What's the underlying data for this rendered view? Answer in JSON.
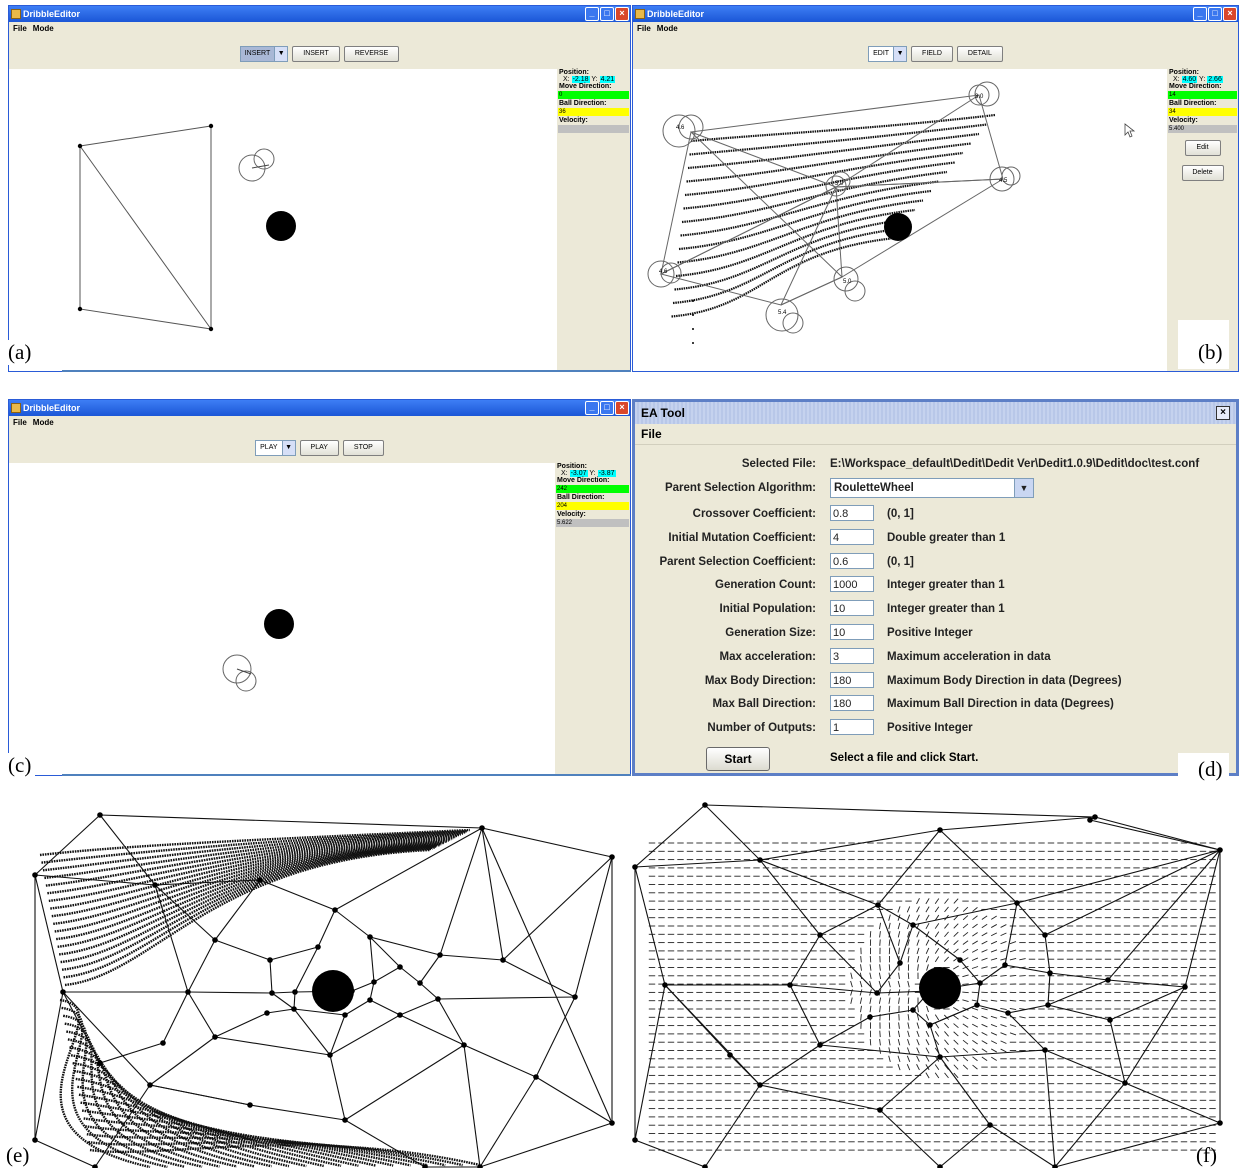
{
  "window_title": "DribbleEditor",
  "menus": [
    "File",
    "Mode"
  ],
  "panels": [
    {
      "id": "a",
      "caption": "(a)",
      "mode_value": "INSERT",
      "buttons": [
        "INSERT",
        "REVERSE"
      ],
      "position_label": "Position:",
      "x_label": "X:",
      "x_value": "-2.18",
      "y_label": "Y:",
      "y_value": "4.21",
      "move_label": "Move Direction:",
      "move_value": "0",
      "ball_label": "Ball Direction:",
      "ball_value": "36",
      "velocity_label": "Velocity:",
      "velocity_value": ""
    },
    {
      "id": "b",
      "caption": "(b)",
      "mode_value": "EDIT",
      "buttons": [
        "FIELD",
        "DETAIL"
      ],
      "position_label": "Position:",
      "x_label": "X:",
      "x_value": "4.60",
      "y_label": "Y:",
      "y_value": "2.66",
      "move_label": "Move Direction:",
      "move_value": "14",
      "ball_label": "Ball Direction:",
      "ball_value": "34",
      "velocity_label": "Velocity:",
      "velocity_value": "5.400",
      "side_buttons": [
        "Edit",
        "Delete"
      ],
      "node_labels": [
        "3.0",
        "4.6",
        "3.0",
        "4.5",
        "4.6",
        "5.0",
        "5.4"
      ]
    },
    {
      "id": "c",
      "caption": "(c)",
      "mode_value": "PLAY",
      "buttons": [
        "PLAY",
        "STOP"
      ],
      "position_label": "Position:",
      "x_label": "X:",
      "x_value": "-3.07",
      "y_label": "Y:",
      "y_value": "-3.87",
      "move_label": "Move Direction:",
      "move_value": "242",
      "ball_label": "Ball Direction:",
      "ball_value": "204",
      "velocity_label": "Velocity:",
      "velocity_value": "5.622"
    }
  ],
  "ea_tool": {
    "title": "EA Tool",
    "menu": "File",
    "caption": "(d)",
    "selected_file_label": "Selected File:",
    "selected_file": "E:\\Workspace_default\\Dedit\\Dedit Ver\\Dedit1.0.9\\Dedit\\doc\\test.conf",
    "algorithm_label": "Parent Selection Algorithm:",
    "algorithm_value": "RouletteWheel",
    "params": [
      {
        "label": "Crossover Coefficient:",
        "value": "0.8",
        "hint": "(0, 1]"
      },
      {
        "label": "Initial Mutation Coefficient:",
        "value": "4",
        "hint": "Double greater than 1"
      },
      {
        "label": "Parent Selection Coefficient:",
        "value": "0.6",
        "hint": "(0, 1]"
      },
      {
        "label": "Generation Count:",
        "value": "1000",
        "hint": "Integer greater than 1"
      },
      {
        "label": "Initial Population:",
        "value": "10",
        "hint": "Integer greater than 1"
      },
      {
        "label": "Generation Size:",
        "value": "10",
        "hint": "Positive Integer"
      },
      {
        "label": "Max acceleration:",
        "value": "3",
        "hint": "Maximum acceleration in data"
      },
      {
        "label": "Max Body Direction:",
        "value": "180",
        "hint": "Maximum Body Direction in data (Degrees)"
      },
      {
        "label": "Max Ball Direction:",
        "value": "180",
        "hint": "Maximum Ball Direction in data (Degrees)"
      },
      {
        "label": "Number of Outputs:",
        "value": "1",
        "hint": "Positive Integer"
      }
    ],
    "start_label": "Start",
    "status": "Select a file and click Start."
  },
  "figure_e": {
    "caption": "(e)"
  },
  "figure_f": {
    "caption": "(f)"
  },
  "colors": {
    "titlebar": "#1b56d6",
    "move": "#00ff00",
    "ball": "#ffff00",
    "position_highlight": "#00ffff",
    "velocity": "#c0c0c0"
  }
}
